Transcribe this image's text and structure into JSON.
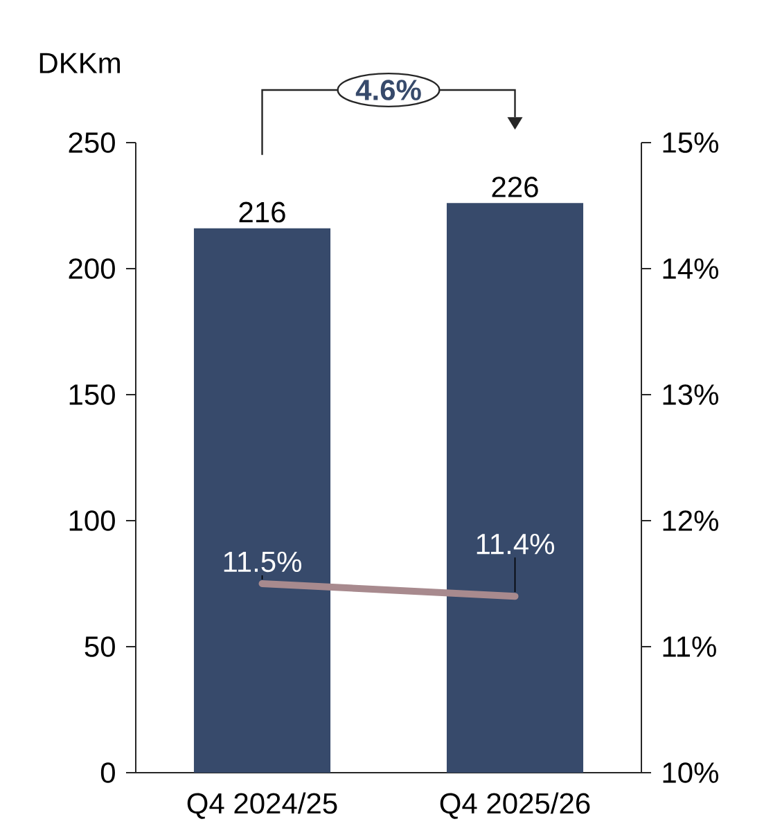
{
  "chart_data": {
    "type": "bar",
    "ylabel": "DKKm",
    "categories": [
      "Q4 2024/25",
      "Q4 2025/26"
    ],
    "series": [
      {
        "color": "#374a6b",
        "values": [
          216,
          226
        ],
        "value_labels": [
          "216",
          "226"
        ]
      },
      {
        "type": "line",
        "axis": "y2",
        "color": "#a88a8e",
        "values": [
          11.5,
          11.4
        ],
        "value_labels": [
          "11.5%",
          "11.4%"
        ]
      }
    ],
    "ylim": [
      0,
      250
    ],
    "yticks": [
      0,
      50,
      100,
      150,
      200,
      250
    ],
    "y2lim": [
      10,
      15
    ],
    "y2ticks": [
      {
        "value": 10,
        "label": "10%"
      },
      {
        "value": 11,
        "label": "11%"
      },
      {
        "value": 12,
        "label": "12%"
      },
      {
        "value": 13,
        "label": "13%"
      },
      {
        "value": 14,
        "label": "14%"
      },
      {
        "value": 15,
        "label": "15%"
      }
    ],
    "annotations": [
      "4.6%"
    ],
    "grid": false,
    "marker": "none",
    "line_style": "solid"
  }
}
